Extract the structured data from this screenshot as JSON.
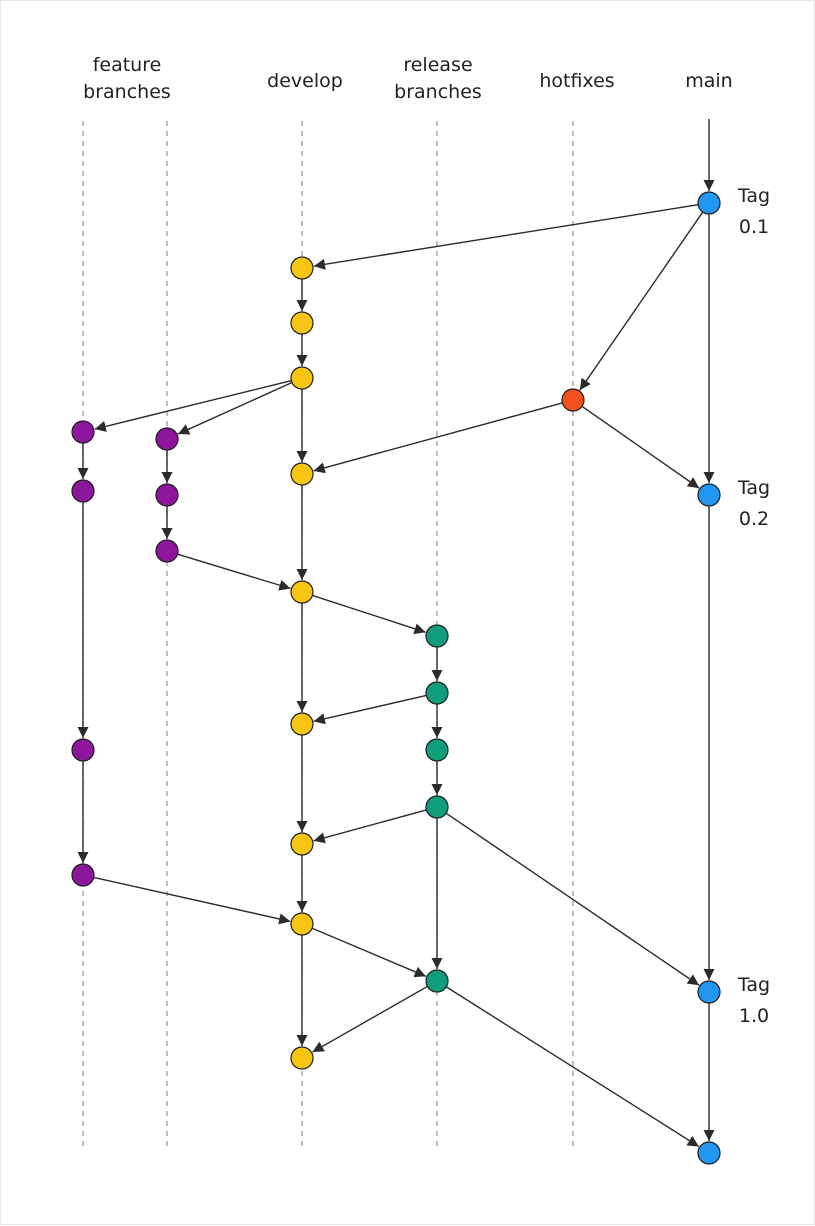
{
  "lanes": [
    {
      "id": "feature-branches-1",
      "label_lines": [
        "feature",
        "branches"
      ]
    },
    {
      "id": "feature-branches-2",
      "label_lines": []
    },
    {
      "id": "develop",
      "label_lines": [
        "develop"
      ]
    },
    {
      "id": "release-branches",
      "label_lines": [
        "release",
        "branches"
      ]
    },
    {
      "id": "hotfixes",
      "label_lines": [
        "hotfixes"
      ]
    },
    {
      "id": "main",
      "label_lines": [
        "main"
      ]
    }
  ],
  "colors": {
    "main": "#2196f3",
    "develop": "#f9c513",
    "feature": "#8e169f",
    "release": "#0f9d7b",
    "hotfix": "#f4511e"
  },
  "nodes": [
    {
      "id": "m1",
      "lane": "main",
      "color": "main",
      "tag": [
        "Tag",
        "0.1"
      ]
    },
    {
      "id": "d1",
      "lane": "develop",
      "color": "develop"
    },
    {
      "id": "d2",
      "lane": "develop",
      "color": "develop"
    },
    {
      "id": "d3",
      "lane": "develop",
      "color": "develop"
    },
    {
      "id": "h1",
      "lane": "hotfixes",
      "color": "hotfix"
    },
    {
      "id": "fa1",
      "lane": "feature-branches-1",
      "color": "feature"
    },
    {
      "id": "fb1",
      "lane": "feature-branches-2",
      "color": "feature"
    },
    {
      "id": "d4",
      "lane": "develop",
      "color": "develop"
    },
    {
      "id": "fa2",
      "lane": "feature-branches-1",
      "color": "feature"
    },
    {
      "id": "fb2",
      "lane": "feature-branches-2",
      "color": "feature"
    },
    {
      "id": "m2",
      "lane": "main",
      "color": "main",
      "tag": [
        "Tag",
        "0.2"
      ]
    },
    {
      "id": "fb3",
      "lane": "feature-branches-2",
      "color": "feature"
    },
    {
      "id": "d5",
      "lane": "develop",
      "color": "develop"
    },
    {
      "id": "r1",
      "lane": "release-branches",
      "color": "release"
    },
    {
      "id": "r2",
      "lane": "release-branches",
      "color": "release"
    },
    {
      "id": "d6",
      "lane": "develop",
      "color": "develop"
    },
    {
      "id": "fa3",
      "lane": "feature-branches-1",
      "color": "feature"
    },
    {
      "id": "r3",
      "lane": "release-branches",
      "color": "release"
    },
    {
      "id": "r4",
      "lane": "release-branches",
      "color": "release"
    },
    {
      "id": "d7",
      "lane": "develop",
      "color": "develop"
    },
    {
      "id": "fa4",
      "lane": "feature-branches-1",
      "color": "feature"
    },
    {
      "id": "d8",
      "lane": "develop",
      "color": "develop"
    },
    {
      "id": "r5",
      "lane": "release-branches",
      "color": "release"
    },
    {
      "id": "m3",
      "lane": "main",
      "color": "main",
      "tag": [
        "Tag",
        "1.0"
      ]
    },
    {
      "id": "d9",
      "lane": "develop",
      "color": "develop"
    },
    {
      "id": "m4",
      "lane": "main",
      "color": "main"
    }
  ],
  "edges": [
    [
      "start-main",
      "m1"
    ],
    [
      "m1",
      "d1"
    ],
    [
      "m1",
      "h1"
    ],
    [
      "m1",
      "m2"
    ],
    [
      "d1",
      "d2"
    ],
    [
      "d2",
      "d3"
    ],
    [
      "d3",
      "fa1"
    ],
    [
      "d3",
      "fb1"
    ],
    [
      "d3",
      "d4"
    ],
    [
      "h1",
      "d4"
    ],
    [
      "h1",
      "m2"
    ],
    [
      "fa1",
      "fa2"
    ],
    [
      "fb1",
      "fb2"
    ],
    [
      "fb2",
      "fb3"
    ],
    [
      "fb3",
      "d5"
    ],
    [
      "d4",
      "d5"
    ],
    [
      "d5",
      "r1"
    ],
    [
      "d5",
      "d6"
    ],
    [
      "r1",
      "r2"
    ],
    [
      "r2",
      "d6"
    ],
    [
      "r2",
      "r3"
    ],
    [
      "r3",
      "r4"
    ],
    [
      "fa2",
      "fa3"
    ],
    [
      "fa3",
      "fa4"
    ],
    [
      "d6",
      "d7"
    ],
    [
      "r4",
      "d7"
    ],
    [
      "r4",
      "m3"
    ],
    [
      "r4",
      "r5"
    ],
    [
      "d7",
      "d8"
    ],
    [
      "fa4",
      "d8"
    ],
    [
      "d8",
      "r5"
    ],
    [
      "d8",
      "d9"
    ],
    [
      "r5",
      "d9"
    ],
    [
      "r5",
      "m4"
    ],
    [
      "m2",
      "m3"
    ],
    [
      "m3",
      "m4"
    ]
  ]
}
